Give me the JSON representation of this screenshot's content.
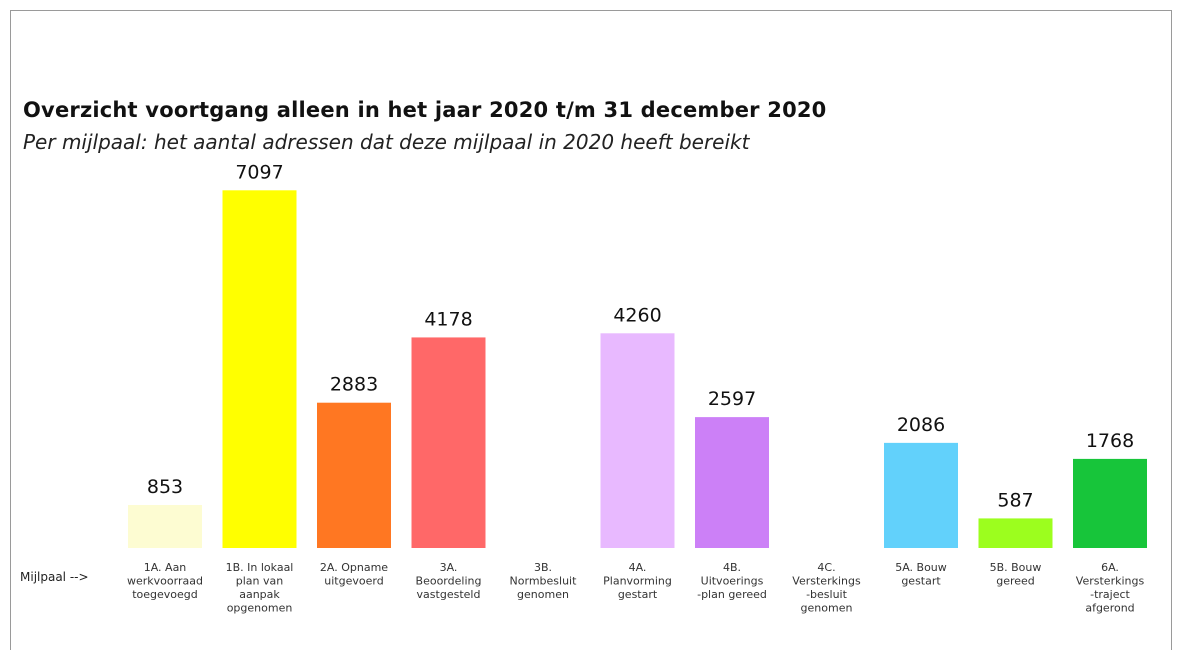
{
  "chart_data": {
    "type": "bar",
    "title": "Overzicht voortgang alleen in het jaar 2020 t/m 31 december 2020",
    "subtitle": "Per mijlpaal: het aantal adressen dat deze mijlpaal in 2020 heeft bereikt",
    "xlabel": "Mijlpaal -->",
    "categories": [
      [
        "1A. Aan",
        "werkvoorraad",
        "toegevoegd"
      ],
      [
        "1B. In lokaal",
        "plan van",
        "aanpak",
        "opgenomen"
      ],
      [
        "2A. Opname",
        "uitgevoerd"
      ],
      [
        "3A.",
        "Beoordeling",
        "vastgesteld"
      ],
      [
        "3B.",
        "Normbesluit",
        "genomen"
      ],
      [
        "4A.",
        "Planvorming",
        "gestart"
      ],
      [
        "4B.",
        "Uitvoerings",
        "-plan gereed"
      ],
      [
        "4C.",
        "Versterkings",
        "-besluit",
        "genomen"
      ],
      [
        "5A. Bouw",
        "gestart"
      ],
      [
        "5B. Bouw",
        "gereed"
      ],
      [
        "6A.",
        "Versterkings",
        "-traject",
        "afgerond"
      ]
    ],
    "values": [
      853,
      7097,
      2883,
      4178,
      null,
      4260,
      2597,
      null,
      2086,
      587,
      1768
    ],
    "colors": [
      "#fdfcd2",
      "#ffff00",
      "#ff7722",
      "#ff6868",
      null,
      "#e8b9ff",
      "#cc80f7",
      null,
      "#62d1fb",
      "#9cfe1e",
      "#17c53a"
    ],
    "ylim": [
      0,
      7500
    ],
    "grid": false,
    "legend": "none"
  }
}
